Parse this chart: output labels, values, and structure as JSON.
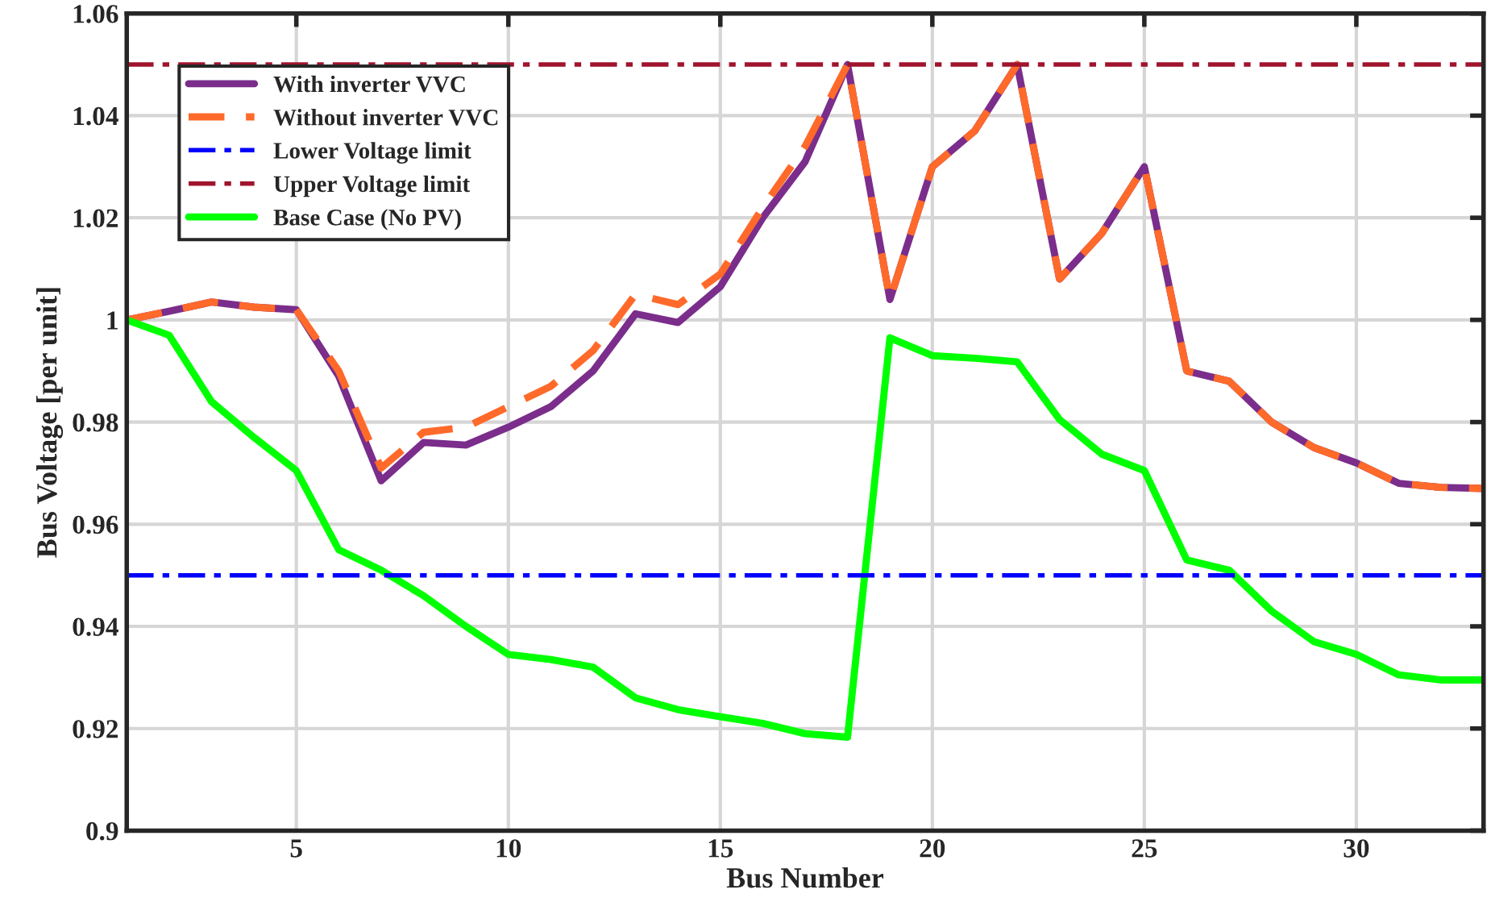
{
  "chart_data": {
    "type": "line",
    "xlabel": "Bus Number",
    "ylabel": "Bus Voltage [per unit]",
    "x": [
      1,
      2,
      3,
      4,
      5,
      6,
      7,
      8,
      9,
      10,
      11,
      12,
      13,
      14,
      15,
      16,
      17,
      18,
      19,
      20,
      21,
      22,
      23,
      24,
      25,
      26,
      27,
      28,
      29,
      30,
      31,
      32,
      33
    ],
    "series": [
      {
        "name": "With inverter VVC",
        "color": "#7b2d8b",
        "line_style": "solid",
        "values": [
          1.0,
          1.0017,
          1.0035,
          1.0025,
          1.002,
          0.989,
          0.9685,
          0.976,
          0.9755,
          0.979,
          0.983,
          0.99,
          1.0012,
          0.9995,
          1.0065,
          1.02,
          1.031,
          1.05,
          1.004,
          1.03,
          1.037,
          1.05,
          1.008,
          1.017,
          1.03,
          0.99,
          0.988,
          0.98,
          0.975,
          0.972,
          0.968,
          0.9672,
          0.967
        ]
      },
      {
        "name": "Without inverter VVC",
        "color": "#ff6a2a",
        "line_style": "dashed",
        "values": [
          1.0,
          1.0017,
          1.0035,
          1.0025,
          1.002,
          0.99,
          0.971,
          0.978,
          0.979,
          0.983,
          0.987,
          0.994,
          1.005,
          1.003,
          1.009,
          1.022,
          1.034,
          1.05,
          1.004,
          1.03,
          1.037,
          1.05,
          1.008,
          1.017,
          1.03,
          0.99,
          0.988,
          0.98,
          0.975,
          0.972,
          0.968,
          0.9672,
          0.967
        ]
      },
      {
        "name": "Base Case (No PV)",
        "color": "#00ff00",
        "line_style": "solid",
        "values": [
          1.0,
          0.997,
          0.984,
          0.977,
          0.9705,
          0.955,
          0.951,
          0.946,
          0.94,
          0.9345,
          0.9335,
          0.932,
          0.926,
          0.9237,
          0.9223,
          0.921,
          0.919,
          0.9183,
          0.9965,
          0.993,
          0.9925,
          0.9918,
          0.9805,
          0.9737,
          0.9705,
          0.953,
          0.951,
          0.943,
          0.937,
          0.9345,
          0.9305,
          0.9295,
          0.9295
        ]
      }
    ],
    "ref_lines": [
      {
        "axis": "y",
        "value": 0.95,
        "label": "Lower Voltage limit",
        "color": "#0000ff",
        "line_style": "dashdot"
      },
      {
        "axis": "y",
        "value": 1.05,
        "label": "Upper Voltage limit",
        "color": "#a0142d",
        "line_style": "dashdot"
      }
    ],
    "xlim": [
      1,
      33
    ],
    "xticks": [
      5,
      10,
      15,
      20,
      25,
      30
    ],
    "ylim": [
      0.9,
      1.06
    ],
    "yticks": [
      0.9,
      0.92,
      0.94,
      0.96,
      0.98,
      1,
      1.02,
      1.04,
      1.06
    ],
    "grid": true,
    "legend": "top left",
    "marker": "none"
  }
}
